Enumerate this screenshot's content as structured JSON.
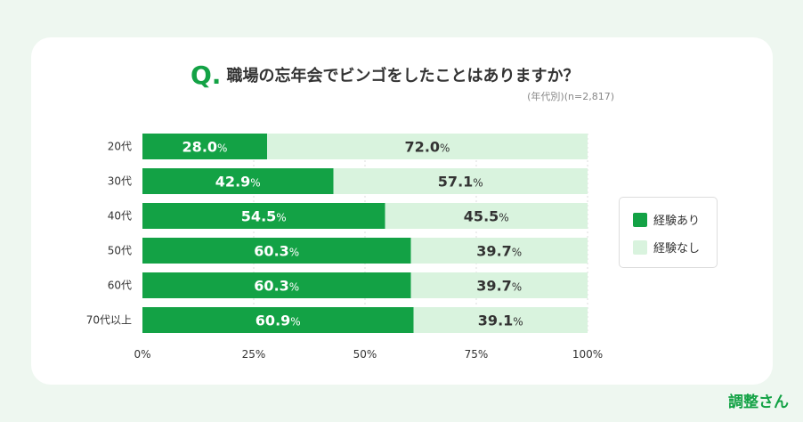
{
  "title": {
    "prefix": "Q.",
    "text": "職場の忘年会でビンゴをしたことはありますか？",
    "subtitle": "(年代別)(n=2,817)"
  },
  "colors": {
    "yes": "#13a245",
    "no": "#d9f3de"
  },
  "brand": "調整さん",
  "chart_data": {
    "type": "bar",
    "orientation": "horizontal",
    "stacked": true,
    "percent": true,
    "categories": [
      "20代",
      "30代",
      "40代",
      "50代",
      "60代",
      "70代以上"
    ],
    "series": [
      {
        "name": "経験あり",
        "values": [
          28.0,
          42.9,
          54.5,
          60.3,
          60.3,
          60.9
        ]
      },
      {
        "name": "経験なし",
        "values": [
          72.0,
          57.1,
          45.5,
          39.7,
          39.7,
          39.1
        ]
      }
    ],
    "xticks": [
      "0%",
      "25%",
      "50%",
      "75%",
      "100%"
    ],
    "xlim": [
      0,
      100
    ],
    "grid": true,
    "legend": "right"
  }
}
